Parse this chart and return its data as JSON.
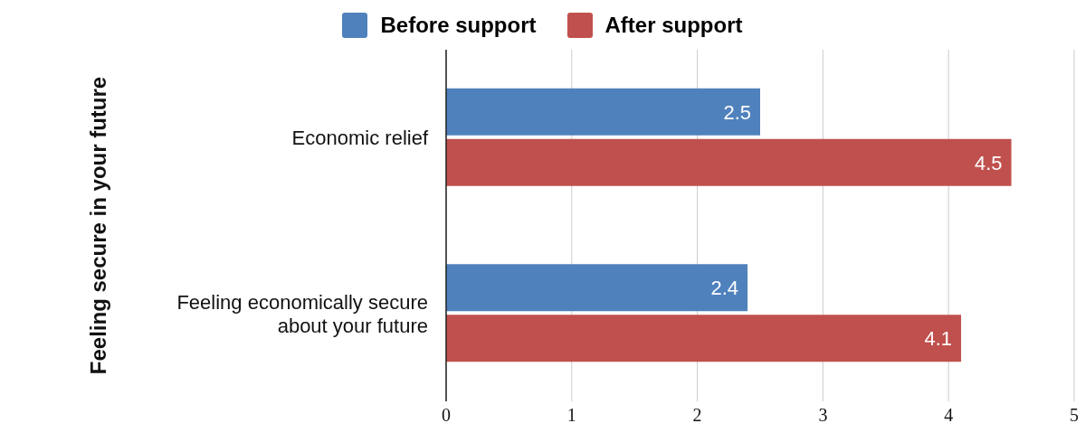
{
  "chart_data": {
    "type": "bar",
    "orientation": "horizontal",
    "ylabel": "Feeling secure in your future",
    "categories": [
      "Economic relief",
      "Feeling economically secure about your future"
    ],
    "series": [
      {
        "name": "Before support",
        "color": "#4f81bd",
        "values": [
          2.5,
          2.4
        ]
      },
      {
        "name": "After support",
        "color": "#c0504d",
        "values": [
          4.5,
          4.1
        ]
      }
    ],
    "xlim": [
      0,
      5
    ],
    "xticks": [
      0,
      1,
      2,
      3,
      4,
      5
    ],
    "grid": "x",
    "legend": "top",
    "data_labels": true
  }
}
